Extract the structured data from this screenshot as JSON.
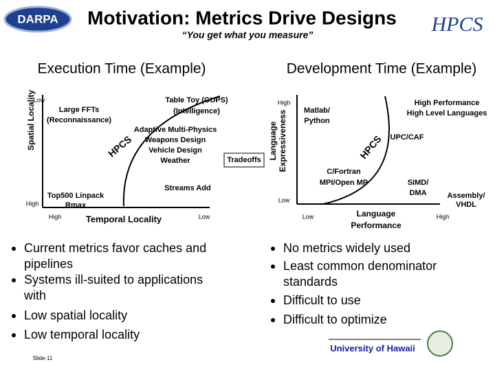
{
  "header": {
    "logo_left": "DARPA",
    "title": "Motivation: Metrics Drive Designs",
    "logo_right": "HPCS",
    "subtitle": "“You get what you measure”"
  },
  "left_panel": {
    "heading": "Execution Time (Example)",
    "y_axis": {
      "label": "Spatial Locality",
      "low": "Low",
      "high": "High"
    },
    "x_axis": {
      "label": "Temporal Locality",
      "high": "High",
      "low": "Low"
    },
    "items": [
      {
        "lines": [
          "Large FFTs",
          "(Reconnaissance)"
        ]
      },
      {
        "lines": [
          "Table Toy (GUPS)",
          "(Intelligence)"
        ]
      },
      {
        "lines": [
          "Adaptive Multi-Physics",
          "Weapons Design",
          "Vehicle Design",
          "Weather"
        ]
      },
      {
        "lines": [
          "Streams Add"
        ]
      },
      {
        "lines": [
          "Top500 Linpack",
          "Rmax"
        ]
      }
    ],
    "hpcs": "HPCS",
    "tradeoffs": "Tradeoffs"
  },
  "right_panel": {
    "heading": "Development Time (Example)",
    "y_axis": {
      "label": [
        "Language",
        "Expressiveness"
      ],
      "high": "High",
      "low": "Low"
    },
    "x_axis": {
      "label": [
        "Language",
        "Performance"
      ],
      "low": "Low",
      "high": "High"
    },
    "items": [
      {
        "lines": [
          "Matlab/",
          "Python"
        ]
      },
      {
        "lines": [
          "High Performance",
          "High Level Languages"
        ]
      },
      {
        "lines": [
          "UPC/CAF"
        ]
      },
      {
        "lines": [
          "C/Fortran",
          "MPI/Open MP"
        ]
      },
      {
        "lines": [
          "SIMD/",
          "DMA"
        ]
      },
      {
        "lines": [
          "Assembly/",
          "VHDL"
        ]
      }
    ],
    "hpcs": "HPCS"
  },
  "left_bullets": [
    {
      "lines": [
        "Current metrics favor caches and",
        "pipelines"
      ]
    },
    {
      "lines": [
        "Systems ill-suited to applications",
        "with"
      ]
    },
    {
      "lines": [
        "Low spatial locality"
      ]
    },
    {
      "lines": [
        "Low temporal locality"
      ]
    }
  ],
  "right_bullets": [
    {
      "lines": [
        "No metrics widely used"
      ]
    },
    {
      "lines": [
        "Least common denominator",
        "standards"
      ]
    },
    {
      "lines": [
        "Difficult to use"
      ]
    },
    {
      "lines": [
        "Difficult to optimize"
      ]
    }
  ],
  "footer": {
    "university": "University of Hawaii",
    "slide": "Slide-11"
  }
}
